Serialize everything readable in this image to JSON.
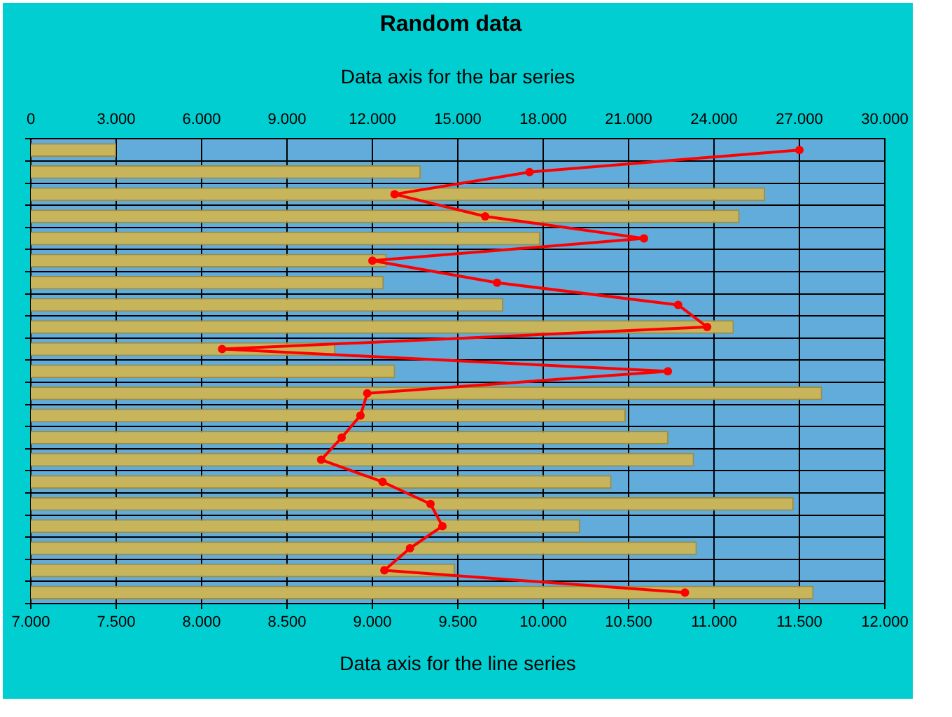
{
  "chart_data": {
    "type": "bar",
    "orientation": "horizontal",
    "title": "Random data",
    "xlabel": "Data axis for the line series",
    "x2label": "Data axis for the bar series",
    "categories": [
      null,
      null,
      null,
      null,
      null,
      null,
      null,
      null,
      null,
      null,
      null,
      null,
      null,
      null,
      null,
      null,
      null,
      null,
      null,
      null,
      null
    ],
    "series": [
      {
        "axis": "x2",
        "color": "#c8b45a",
        "values": [
          3000,
          13700,
          25800,
          24900,
          17900,
          12500,
          12400,
          16600,
          24700,
          10700,
          12800,
          27800,
          20900,
          22400,
          23300,
          20400,
          26800,
          19300,
          23400,
          14900,
          27500
        ]
      },
      {
        "type": "line",
        "color": "#ff0000",
        "marker": "circle",
        "line_style": "solid",
        "values": [
          11500,
          9920,
          9130,
          9660,
          10590,
          9000,
          9730,
          10790,
          10960,
          8120,
          10730,
          8970,
          8930,
          8820,
          8700,
          9060,
          9340,
          9410,
          9220,
          9070,
          10830
        ]
      }
    ],
    "xlim": [
      7000,
      12000
    ],
    "xticks": [
      {
        "value": 7000,
        "label": "7.000"
      },
      {
        "value": 7500,
        "label": "7.500"
      },
      {
        "value": 8000,
        "label": "8.000"
      },
      {
        "value": 8500,
        "label": "8.500"
      },
      {
        "value": 9000,
        "label": "9.000"
      },
      {
        "value": 9500,
        "label": "9.500"
      },
      {
        "value": 10000,
        "label": "10.000"
      },
      {
        "value": 10500,
        "label": "10.500"
      },
      {
        "value": 11000,
        "label": "11.000"
      },
      {
        "value": 11500,
        "label": "11.500"
      },
      {
        "value": 12000,
        "label": "12.000"
      }
    ],
    "x2lim": [
      0,
      30000
    ],
    "x2ticks": [
      0,
      {
        "value": 3000,
        "label": "3.000"
      },
      {
        "value": 6000,
        "label": "6.000"
      },
      {
        "value": 9000,
        "label": "9.000"
      },
      {
        "value": 12000,
        "label": "12.000"
      },
      {
        "value": 15000,
        "label": "15.000"
      },
      {
        "value": 18000,
        "label": "18.000"
      },
      {
        "value": 21000,
        "label": "21.000"
      },
      {
        "value": 24000,
        "label": "24.000"
      },
      {
        "value": 27000,
        "label": "27.000"
      },
      {
        "value": 30000,
        "label": "30.000"
      }
    ],
    "grid": true,
    "legend": false
  }
}
